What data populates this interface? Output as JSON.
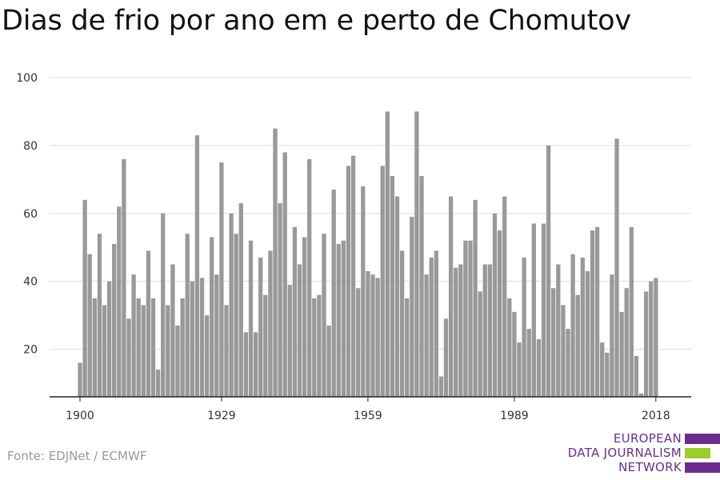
{
  "title": "Dias de frio por ano em e perto de Chomutov",
  "source": "Fonte: EDJNet / ECMWF",
  "logo": {
    "lines": [
      "EUROPEAN",
      "DATA JOURNALISM",
      "NETWORK"
    ],
    "colors": {
      "purple": "#6b2c8f",
      "green": "#9ccc2e"
    }
  },
  "colors": {
    "bar": "#999999",
    "grid": "#dddddd",
    "axis": "#222222"
  },
  "chart_data": {
    "type": "bar",
    "title": "Dias de frio por ano em e perto de Chomutov",
    "x_start": 1900,
    "x_end": 2018,
    "values": [
      16,
      64,
      48,
      35,
      54,
      33,
      40,
      51,
      62,
      76,
      29,
      42,
      35,
      33,
      49,
      35,
      14,
      60,
      33,
      45,
      27,
      35,
      54,
      40,
      83,
      41,
      30,
      53,
      42,
      75,
      33,
      60,
      54,
      63,
      25,
      52,
      25,
      47,
      36,
      49,
      85,
      63,
      78,
      39,
      56,
      45,
      53,
      76,
      35,
      36,
      54,
      27,
      67,
      51,
      52,
      74,
      77,
      38,
      68,
      43,
      42,
      41,
      74,
      90,
      71,
      65,
      49,
      35,
      59,
      90,
      71,
      42,
      47,
      49,
      12,
      29,
      65,
      44,
      45,
      52,
      52,
      64,
      37,
      45,
      45,
      60,
      55,
      65,
      35,
      31,
      22,
      47,
      26,
      57,
      23,
      57,
      80,
      38,
      45,
      33,
      26,
      48,
      36,
      47,
      43,
      55,
      56,
      22,
      19,
      42,
      82,
      31,
      38,
      56,
      18,
      7,
      37,
      40,
      41
    ],
    "xticks": [
      "1900",
      "1929",
      "1959",
      "1989",
      "2018"
    ],
    "yticks": [
      "20",
      "40",
      "60",
      "80",
      "100"
    ],
    "ylim": [
      6,
      100
    ],
    "grid": true
  }
}
